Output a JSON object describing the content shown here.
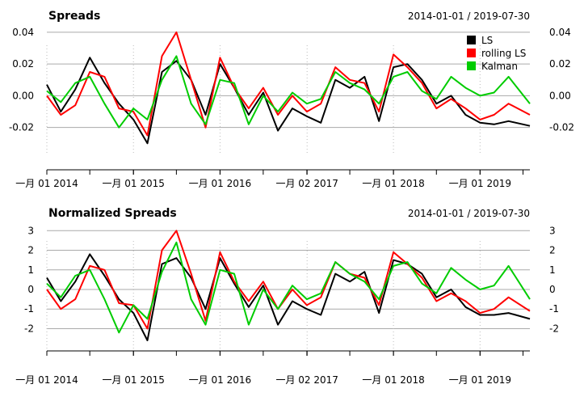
{
  "chart_data": [
    {
      "type": "line",
      "title": "Spreads",
      "date_range": "2014-01-01 / 2019-07-30",
      "x_start": "2014-01-01",
      "x_end": "2019-07-30",
      "ylim": [
        -0.038,
        0.042
      ],
      "y_ticks": [
        -0.02,
        0.0,
        0.02,
        0.04
      ],
      "y_tick_labels": [
        "-0.02",
        "0.00",
        "0.02",
        "0.04"
      ],
      "x_ticks": [
        "2014-01-01",
        "2015-01-01",
        "2016-01-01",
        "2017-01-02",
        "2018-01-01",
        "2019-01-01"
      ],
      "x_tick_labels": [
        "一月 01 2014",
        "一月 01 2015",
        "一月 01 2016",
        "一月 02 2017",
        "一月 01 2018",
        "一月 01 2019"
      ],
      "legend": {
        "position": "top-right",
        "entries": [
          "LS",
          "rolling LS",
          "Kalman"
        ]
      },
      "grid": true,
      "series": [
        {
          "name": "LS",
          "color": "#000000",
          "x": [
            "2014-01-01",
            "2014-03-01",
            "2014-05-01",
            "2014-07-01",
            "2014-09-01",
            "2014-11-01",
            "2015-01-01",
            "2015-03-01",
            "2015-05-01",
            "2015-07-01",
            "2015-09-01",
            "2015-11-01",
            "2016-01-01",
            "2016-03-01",
            "2016-05-01",
            "2016-07-01",
            "2016-09-01",
            "2016-11-01",
            "2017-01-01",
            "2017-03-01",
            "2017-05-01",
            "2017-07-01",
            "2017-09-01",
            "2017-11-01",
            "2018-01-01",
            "2018-03-01",
            "2018-05-01",
            "2018-07-01",
            "2018-09-01",
            "2018-11-01",
            "2019-01-01",
            "2019-03-01",
            "2019-05-01",
            "2019-07-30"
          ],
          "values": [
            0.007,
            -0.01,
            0.004,
            0.024,
            0.008,
            -0.005,
            -0.015,
            -0.03,
            0.015,
            0.022,
            0.01,
            -0.012,
            0.02,
            0.005,
            -0.012,
            0.002,
            -0.022,
            -0.008,
            -0.013,
            -0.017,
            0.01,
            0.005,
            0.012,
            -0.016,
            0.018,
            0.02,
            0.01,
            -0.005,
            0.0,
            -0.012,
            -0.017,
            -0.018,
            -0.016,
            -0.019
          ]
        },
        {
          "name": "rolling LS",
          "color": "#ff0000",
          "x": [
            "2014-01-01",
            "2014-03-01",
            "2014-05-01",
            "2014-07-01",
            "2014-09-01",
            "2014-11-01",
            "2015-01-01",
            "2015-03-01",
            "2015-05-01",
            "2015-07-01",
            "2015-09-01",
            "2015-11-01",
            "2016-01-01",
            "2016-03-01",
            "2016-05-01",
            "2016-07-01",
            "2016-09-01",
            "2016-11-01",
            "2017-01-01",
            "2017-03-01",
            "2017-05-01",
            "2017-07-01",
            "2017-09-01",
            "2017-11-01",
            "2018-01-01",
            "2018-03-01",
            "2018-05-01",
            "2018-07-01",
            "2018-09-01",
            "2018-11-01",
            "2019-01-01",
            "2019-03-01",
            "2019-05-01",
            "2019-07-30"
          ],
          "values": [
            0.0,
            -0.012,
            -0.006,
            0.015,
            0.012,
            -0.008,
            -0.01,
            -0.025,
            0.025,
            0.04,
            0.01,
            -0.02,
            0.024,
            0.005,
            -0.008,
            0.005,
            -0.012,
            0.0,
            -0.01,
            -0.005,
            0.018,
            0.01,
            0.008,
            -0.01,
            0.026,
            0.018,
            0.008,
            -0.008,
            -0.002,
            -0.008,
            -0.015,
            -0.012,
            -0.005,
            -0.012
          ]
        },
        {
          "name": "Kalman",
          "color": "#00cc00",
          "x": [
            "2014-01-01",
            "2014-03-01",
            "2014-05-01",
            "2014-07-01",
            "2014-09-01",
            "2014-11-01",
            "2015-01-01",
            "2015-03-01",
            "2015-05-01",
            "2015-07-01",
            "2015-09-01",
            "2015-11-01",
            "2016-01-01",
            "2016-03-01",
            "2016-05-01",
            "2016-07-01",
            "2016-09-01",
            "2016-11-01",
            "2017-01-01",
            "2017-03-01",
            "2017-05-01",
            "2017-07-01",
            "2017-09-01",
            "2017-11-01",
            "2018-01-01",
            "2018-03-01",
            "2018-05-01",
            "2018-07-01",
            "2018-09-01",
            "2018-11-01",
            "2019-01-01",
            "2019-03-01",
            "2019-05-01",
            "2019-07-30"
          ],
          "values": [
            0.003,
            -0.004,
            0.008,
            0.012,
            -0.005,
            -0.02,
            -0.008,
            -0.015,
            0.01,
            0.025,
            -0.005,
            -0.018,
            0.01,
            0.008,
            -0.018,
            0.0,
            -0.01,
            0.002,
            -0.005,
            -0.002,
            0.015,
            0.008,
            0.004,
            -0.005,
            0.012,
            0.015,
            0.003,
            -0.002,
            0.012,
            0.005,
            0.0,
            0.002,
            0.012,
            -0.005
          ]
        }
      ]
    },
    {
      "type": "line",
      "title": "Normalized Spreads",
      "date_range": "2014-01-01 / 2019-07-30",
      "x_start": "2014-01-01",
      "x_end": "2019-07-30",
      "ylim": [
        -3.3,
        3.3
      ],
      "y_ticks": [
        -2,
        -1,
        0,
        1,
        2,
        3
      ],
      "y_tick_labels": [
        "-2",
        "-1",
        "0",
        "1",
        "2",
        "3"
      ],
      "x_ticks": [
        "2014-01-01",
        "2015-01-01",
        "2016-01-01",
        "2017-01-02",
        "2018-01-01",
        "2019-01-01"
      ],
      "x_tick_labels": [
        "一月 01 2014",
        "一月 01 2015",
        "一月 01 2016",
        "一月 02 2017",
        "一月 01 2018",
        "一月 01 2019"
      ],
      "grid": true,
      "series": [
        {
          "name": "LS",
          "color": "#000000",
          "x": [
            "2014-01-01",
            "2014-03-01",
            "2014-05-01",
            "2014-07-01",
            "2014-09-01",
            "2014-11-01",
            "2015-01-01",
            "2015-03-01",
            "2015-05-01",
            "2015-07-01",
            "2015-09-01",
            "2015-11-01",
            "2016-01-01",
            "2016-03-01",
            "2016-05-01",
            "2016-07-01",
            "2016-09-01",
            "2016-11-01",
            "2017-01-01",
            "2017-03-01",
            "2017-05-01",
            "2017-07-01",
            "2017-09-01",
            "2017-11-01",
            "2018-01-01",
            "2018-03-01",
            "2018-05-01",
            "2018-07-01",
            "2018-09-01",
            "2018-11-01",
            "2019-01-01",
            "2019-03-01",
            "2019-05-01",
            "2019-07-30"
          ],
          "values": [
            0.6,
            -0.6,
            0.4,
            1.8,
            0.7,
            -0.5,
            -1.2,
            -2.6,
            1.3,
            1.6,
            0.6,
            -1.0,
            1.6,
            0.3,
            -0.9,
            0.2,
            -1.8,
            -0.6,
            -1.0,
            -1.3,
            0.8,
            0.4,
            0.9,
            -1.2,
            1.5,
            1.3,
            0.8,
            -0.4,
            0.0,
            -0.9,
            -1.3,
            -1.3,
            -1.2,
            -1.5
          ]
        },
        {
          "name": "rolling LS",
          "color": "#ff0000",
          "x": [
            "2014-01-01",
            "2014-03-01",
            "2014-05-01",
            "2014-07-01",
            "2014-09-01",
            "2014-11-01",
            "2015-01-01",
            "2015-03-01",
            "2015-05-01",
            "2015-07-01",
            "2015-09-01",
            "2015-11-01",
            "2016-01-01",
            "2016-03-01",
            "2016-05-01",
            "2016-07-01",
            "2016-09-01",
            "2016-11-01",
            "2017-01-01",
            "2017-03-01",
            "2017-05-01",
            "2017-07-01",
            "2017-09-01",
            "2017-11-01",
            "2018-01-01",
            "2018-03-01",
            "2018-05-01",
            "2018-07-01",
            "2018-09-01",
            "2018-11-01",
            "2019-01-01",
            "2019-03-01",
            "2019-05-01",
            "2019-07-30"
          ],
          "values": [
            0.0,
            -1.0,
            -0.5,
            1.2,
            1.0,
            -0.7,
            -0.8,
            -2.0,
            2.0,
            3.0,
            0.8,
            -1.6,
            1.9,
            0.4,
            -0.6,
            0.4,
            -1.0,
            0.0,
            -0.8,
            -0.4,
            1.4,
            0.8,
            0.6,
            -0.8,
            1.9,
            1.3,
            0.6,
            -0.6,
            -0.2,
            -0.6,
            -1.2,
            -1.0,
            -0.4,
            -1.1
          ]
        },
        {
          "name": "Kalman",
          "color": "#00cc00",
          "x": [
            "2014-01-01",
            "2014-03-01",
            "2014-05-01",
            "2014-07-01",
            "2014-09-01",
            "2014-11-01",
            "2015-01-01",
            "2015-03-01",
            "2015-05-01",
            "2015-07-01",
            "2015-09-01",
            "2015-11-01",
            "2016-01-01",
            "2016-03-01",
            "2016-05-01",
            "2016-07-01",
            "2016-09-01",
            "2016-11-01",
            "2017-01-01",
            "2017-03-01",
            "2017-05-01",
            "2017-07-01",
            "2017-09-01",
            "2017-11-01",
            "2018-01-01",
            "2018-03-01",
            "2018-05-01",
            "2018-07-01",
            "2018-09-01",
            "2018-11-01",
            "2019-01-01",
            "2019-03-01",
            "2019-05-01",
            "2019-07-30"
          ],
          "values": [
            0.3,
            -0.4,
            0.7,
            1.0,
            -0.5,
            -2.2,
            -0.8,
            -1.5,
            0.9,
            2.4,
            -0.5,
            -1.8,
            1.0,
            0.8,
            -1.8,
            0.0,
            -1.0,
            0.2,
            -0.5,
            -0.2,
            1.4,
            0.8,
            0.4,
            -0.5,
            1.2,
            1.4,
            0.3,
            -0.2,
            1.1,
            0.5,
            0.0,
            0.2,
            1.2,
            -0.5
          ]
        }
      ]
    }
  ]
}
